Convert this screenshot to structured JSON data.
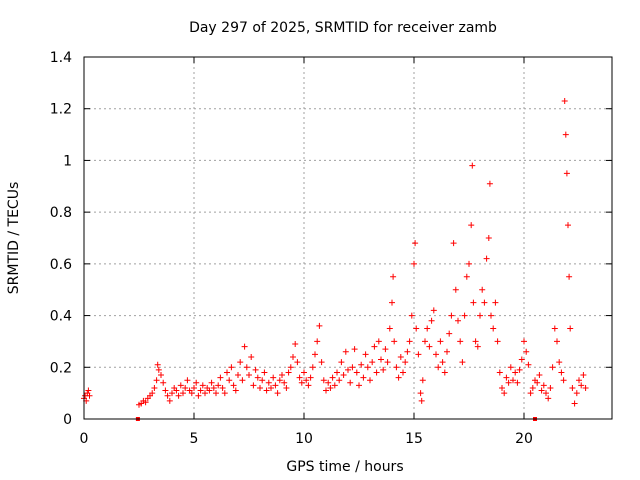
{
  "chart_data": {
    "type": "scatter",
    "title": "Day 297 of 2025, SRMTID for receiver zamb",
    "xlabel": "GPS time / hours",
    "ylabel": "SRMTID / TECUs",
    "xlim": [
      0,
      24
    ],
    "ylim": [
      0,
      1.4
    ],
    "xticks": [
      0,
      5,
      10,
      15,
      20
    ],
    "xtick_labels": [
      "0",
      "5",
      "10",
      "15",
      "20"
    ],
    "yticks": [
      0,
      0.2,
      0.4,
      0.6,
      0.8,
      1.0,
      1.2,
      1.4
    ],
    "ytick_labels": [
      "0",
      "0.2",
      "0.4",
      "0.6",
      "0.8",
      "1",
      "1.2",
      "1.4"
    ],
    "grid": true,
    "marker": "+",
    "color": "#ff0000",
    "series": [
      {
        "name": "SRMTID",
        "points": [
          [
            0.0,
            0.08
          ],
          [
            0.05,
            0.09
          ],
          [
            0.1,
            0.07
          ],
          [
            0.15,
            0.1
          ],
          [
            0.2,
            0.11
          ],
          [
            0.25,
            0.09
          ],
          [
            2.5,
            0.055
          ],
          [
            2.6,
            0.06
          ],
          [
            2.7,
            0.07
          ],
          [
            2.8,
            0.065
          ],
          [
            2.9,
            0.08
          ],
          [
            3.0,
            0.09
          ],
          [
            3.1,
            0.1
          ],
          [
            3.2,
            0.12
          ],
          [
            3.3,
            0.15
          ],
          [
            3.35,
            0.21
          ],
          [
            3.4,
            0.19
          ],
          [
            3.5,
            0.17
          ],
          [
            3.6,
            0.14
          ],
          [
            3.7,
            0.11
          ],
          [
            3.8,
            0.09
          ],
          [
            3.9,
            0.07
          ],
          [
            4.0,
            0.1
          ],
          [
            4.1,
            0.12
          ],
          [
            4.2,
            0.11
          ],
          [
            4.3,
            0.09
          ],
          [
            4.4,
            0.13
          ],
          [
            4.5,
            0.1
          ],
          [
            4.6,
            0.12
          ],
          [
            4.7,
            0.15
          ],
          [
            4.8,
            0.11
          ],
          [
            4.9,
            0.1
          ],
          [
            5.0,
            0.12
          ],
          [
            5.1,
            0.14
          ],
          [
            5.2,
            0.09
          ],
          [
            5.3,
            0.11
          ],
          [
            5.4,
            0.13
          ],
          [
            5.5,
            0.1
          ],
          [
            5.6,
            0.12
          ],
          [
            5.7,
            0.11
          ],
          [
            5.8,
            0.14
          ],
          [
            5.9,
            0.12
          ],
          [
            6.0,
            0.1
          ],
          [
            6.1,
            0.13
          ],
          [
            6.2,
            0.16
          ],
          [
            6.3,
            0.12
          ],
          [
            6.4,
            0.1
          ],
          [
            6.5,
            0.18
          ],
          [
            6.6,
            0.15
          ],
          [
            6.7,
            0.2
          ],
          [
            6.8,
            0.13
          ],
          [
            6.9,
            0.11
          ],
          [
            7.0,
            0.17
          ],
          [
            7.1,
            0.22
          ],
          [
            7.2,
            0.15
          ],
          [
            7.3,
            0.28
          ],
          [
            7.4,
            0.2
          ],
          [
            7.5,
            0.17
          ],
          [
            7.6,
            0.24
          ],
          [
            7.7,
            0.13
          ],
          [
            7.8,
            0.19
          ],
          [
            7.9,
            0.16
          ],
          [
            8.0,
            0.12
          ],
          [
            8.1,
            0.15
          ],
          [
            8.2,
            0.18
          ],
          [
            8.3,
            0.11
          ],
          [
            8.4,
            0.14
          ],
          [
            8.5,
            0.12
          ],
          [
            8.6,
            0.16
          ],
          [
            8.7,
            0.13
          ],
          [
            8.8,
            0.1
          ],
          [
            8.9,
            0.15
          ],
          [
            9.0,
            0.17
          ],
          [
            9.1,
            0.14
          ],
          [
            9.2,
            0.12
          ],
          [
            9.3,
            0.18
          ],
          [
            9.4,
            0.2
          ],
          [
            9.5,
            0.24
          ],
          [
            9.6,
            0.29
          ],
          [
            9.7,
            0.22
          ],
          [
            9.8,
            0.16
          ],
          [
            9.9,
            0.14
          ],
          [
            10.0,
            0.18
          ],
          [
            10.1,
            0.15
          ],
          [
            10.2,
            0.13
          ],
          [
            10.3,
            0.16
          ],
          [
            10.4,
            0.2
          ],
          [
            10.5,
            0.25
          ],
          [
            10.6,
            0.3
          ],
          [
            10.7,
            0.36
          ],
          [
            10.8,
            0.22
          ],
          [
            10.9,
            0.15
          ],
          [
            11.0,
            0.11
          ],
          [
            11.1,
            0.14
          ],
          [
            11.2,
            0.12
          ],
          [
            11.3,
            0.16
          ],
          [
            11.4,
            0.13
          ],
          [
            11.5,
            0.18
          ],
          [
            11.6,
            0.15
          ],
          [
            11.7,
            0.22
          ],
          [
            11.8,
            0.17
          ],
          [
            11.9,
            0.26
          ],
          [
            12.0,
            0.19
          ],
          [
            12.1,
            0.14
          ],
          [
            12.2,
            0.2
          ],
          [
            12.3,
            0.27
          ],
          [
            12.4,
            0.18
          ],
          [
            12.5,
            0.13
          ],
          [
            12.6,
            0.21
          ],
          [
            12.7,
            0.16
          ],
          [
            12.8,
            0.25
          ],
          [
            12.9,
            0.2
          ],
          [
            13.0,
            0.15
          ],
          [
            13.1,
            0.22
          ],
          [
            13.2,
            0.28
          ],
          [
            13.3,
            0.18
          ],
          [
            13.4,
            0.3
          ],
          [
            13.5,
            0.23
          ],
          [
            13.6,
            0.19
          ],
          [
            13.7,
            0.27
          ],
          [
            13.8,
            0.22
          ],
          [
            13.9,
            0.35
          ],
          [
            14.0,
            0.45
          ],
          [
            14.05,
            0.55
          ],
          [
            14.1,
            0.3
          ],
          [
            14.2,
            0.2
          ],
          [
            14.3,
            0.16
          ],
          [
            14.4,
            0.24
          ],
          [
            14.5,
            0.18
          ],
          [
            14.6,
            0.22
          ],
          [
            14.7,
            0.26
          ],
          [
            14.8,
            0.3
          ],
          [
            14.9,
            0.4
          ],
          [
            15.0,
            0.6
          ],
          [
            15.05,
            0.68
          ],
          [
            15.1,
            0.35
          ],
          [
            15.2,
            0.25
          ],
          [
            15.3,
            0.1
          ],
          [
            15.35,
            0.07
          ],
          [
            15.4,
            0.15
          ],
          [
            15.5,
            0.3
          ],
          [
            15.6,
            0.35
          ],
          [
            15.7,
            0.28
          ],
          [
            15.8,
            0.38
          ],
          [
            15.9,
            0.42
          ],
          [
            16.0,
            0.25
          ],
          [
            16.1,
            0.2
          ],
          [
            16.2,
            0.3
          ],
          [
            16.3,
            0.22
          ],
          [
            16.4,
            0.18
          ],
          [
            16.5,
            0.26
          ],
          [
            16.6,
            0.33
          ],
          [
            16.7,
            0.4
          ],
          [
            16.8,
            0.68
          ],
          [
            16.9,
            0.5
          ],
          [
            17.0,
            0.38
          ],
          [
            17.1,
            0.3
          ],
          [
            17.2,
            0.22
          ],
          [
            17.3,
            0.4
          ],
          [
            17.4,
            0.55
          ],
          [
            17.5,
            0.6
          ],
          [
            17.6,
            0.75
          ],
          [
            17.65,
            0.98
          ],
          [
            17.7,
            0.45
          ],
          [
            17.8,
            0.3
          ],
          [
            17.9,
            0.28
          ],
          [
            18.0,
            0.4
          ],
          [
            18.1,
            0.5
          ],
          [
            18.2,
            0.45
          ],
          [
            18.3,
            0.62
          ],
          [
            18.4,
            0.7
          ],
          [
            18.45,
            0.91
          ],
          [
            18.5,
            0.4
          ],
          [
            18.6,
            0.35
          ],
          [
            18.7,
            0.45
          ],
          [
            18.8,
            0.3
          ],
          [
            18.9,
            0.18
          ],
          [
            19.0,
            0.12
          ],
          [
            19.1,
            0.1
          ],
          [
            19.2,
            0.16
          ],
          [
            19.3,
            0.14
          ],
          [
            19.4,
            0.2
          ],
          [
            19.5,
            0.15
          ],
          [
            19.6,
            0.18
          ],
          [
            19.7,
            0.14
          ],
          [
            19.8,
            0.19
          ],
          [
            19.9,
            0.23
          ],
          [
            20.0,
            0.3
          ],
          [
            20.1,
            0.26
          ],
          [
            20.2,
            0.21
          ],
          [
            20.3,
            0.1
          ],
          [
            20.4,
            0.12
          ],
          [
            20.5,
            0.15
          ],
          [
            20.6,
            0.14
          ],
          [
            20.7,
            0.17
          ],
          [
            20.8,
            0.11
          ],
          [
            20.9,
            0.13
          ],
          [
            21.0,
            0.1
          ],
          [
            21.1,
            0.08
          ],
          [
            21.2,
            0.12
          ],
          [
            21.3,
            0.2
          ],
          [
            21.4,
            0.35
          ],
          [
            21.5,
            0.3
          ],
          [
            21.6,
            0.22
          ],
          [
            21.7,
            0.18
          ],
          [
            21.8,
            0.15
          ],
          [
            21.85,
            1.23
          ],
          [
            21.9,
            1.1
          ],
          [
            21.95,
            0.95
          ],
          [
            22.0,
            0.75
          ],
          [
            22.05,
            0.55
          ],
          [
            22.1,
            0.35
          ],
          [
            22.2,
            0.12
          ],
          [
            22.3,
            0.06
          ],
          [
            22.4,
            0.1
          ],
          [
            22.5,
            0.15
          ],
          [
            22.6,
            0.13
          ],
          [
            22.7,
            0.17
          ],
          [
            22.8,
            0.12
          ]
        ]
      }
    ],
    "gap_markers": [
      2.45,
      20.5
    ]
  }
}
